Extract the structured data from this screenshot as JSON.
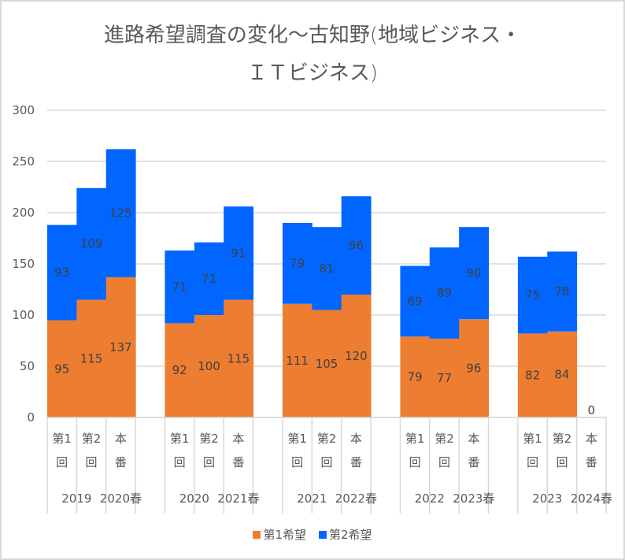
{
  "chart_data": {
    "type": "bar",
    "stacked": true,
    "title": "進路希望調査の変化～古知野(地域ビジネス・ＩＴビジネス)",
    "title_lines": [
      "進路希望調査の変化～古知野(地域ビジネス・",
      "ＩＴビジネス)"
    ],
    "xlabel": "",
    "ylabel": "",
    "ylim": [
      0,
      300
    ],
    "yticks": [
      0,
      50,
      100,
      150,
      200,
      250,
      300
    ],
    "grid": true,
    "legend_position": "bottom",
    "categories": [
      {
        "inner": "第1回",
        "inner_lines": [
          "第1",
          "回"
        ],
        "outer": "2019"
      },
      {
        "inner": "第2回",
        "inner_lines": [
          "第2",
          "回"
        ],
        "outer": "2019"
      },
      {
        "inner": "本番",
        "inner_lines": [
          "本",
          "番"
        ],
        "outer": "2020春"
      },
      {
        "inner": "",
        "inner_lines": [],
        "outer": ""
      },
      {
        "inner": "第1回",
        "inner_lines": [
          "第1",
          "回"
        ],
        "outer": "2020"
      },
      {
        "inner": "第2回",
        "inner_lines": [
          "第2",
          "回"
        ],
        "outer": "2020"
      },
      {
        "inner": "本番",
        "inner_lines": [
          "本",
          "番"
        ],
        "outer": "2021春"
      },
      {
        "inner": "",
        "inner_lines": [],
        "outer": ""
      },
      {
        "inner": "第1回",
        "inner_lines": [
          "第1",
          "回"
        ],
        "outer": "2021"
      },
      {
        "inner": "第2回",
        "inner_lines": [
          "第2",
          "回"
        ],
        "outer": "2021"
      },
      {
        "inner": "本番",
        "inner_lines": [
          "本",
          "番"
        ],
        "outer": "2022春"
      },
      {
        "inner": "",
        "inner_lines": [],
        "outer": ""
      },
      {
        "inner": "第1回",
        "inner_lines": [
          "第1",
          "回"
        ],
        "outer": "2022"
      },
      {
        "inner": "第2回",
        "inner_lines": [
          "第2",
          "回"
        ],
        "outer": "2022"
      },
      {
        "inner": "本番",
        "inner_lines": [
          "本",
          "番"
        ],
        "outer": "2023春"
      },
      {
        "inner": "",
        "inner_lines": [],
        "outer": ""
      },
      {
        "inner": "第1回",
        "inner_lines": [
          "第1",
          "回"
        ],
        "outer": "2023"
      },
      {
        "inner": "第2回",
        "inner_lines": [
          "第2",
          "回"
        ],
        "outer": "2023"
      },
      {
        "inner": "本番",
        "inner_lines": [
          "本",
          "番"
        ],
        "outer": "2024春"
      }
    ],
    "outer_groups": [
      {
        "label": "2019",
        "span": [
          0,
          1
        ]
      },
      {
        "label": "2020春",
        "span": [
          2,
          2
        ]
      },
      {
        "label": "",
        "span": [
          3,
          3
        ]
      },
      {
        "label": "2020",
        "span": [
          4,
          5
        ]
      },
      {
        "label": "2021春",
        "span": [
          6,
          6
        ]
      },
      {
        "label": "",
        "span": [
          7,
          7
        ]
      },
      {
        "label": "2021",
        "span": [
          8,
          9
        ]
      },
      {
        "label": "2022春",
        "span": [
          10,
          10
        ]
      },
      {
        "label": "",
        "span": [
          11,
          11
        ]
      },
      {
        "label": "2022",
        "span": [
          12,
          13
        ]
      },
      {
        "label": "2023春",
        "span": [
          14,
          14
        ]
      },
      {
        "label": "",
        "span": [
          15,
          15
        ]
      },
      {
        "label": "2023",
        "span": [
          16,
          17
        ]
      },
      {
        "label": "2024春",
        "span": [
          18,
          18
        ]
      }
    ],
    "series": [
      {
        "name": "第1希望",
        "color": "#ED7D31",
        "values": [
          95,
          115,
          137,
          null,
          92,
          100,
          115,
          null,
          111,
          105,
          120,
          null,
          79,
          77,
          96,
          null,
          82,
          84,
          0
        ]
      },
      {
        "name": "第2希望",
        "color": "#0066FF",
        "values": [
          93,
          109,
          125,
          null,
          71,
          71,
          91,
          null,
          79,
          81,
          96,
          null,
          69,
          89,
          90,
          null,
          75,
          78,
          null
        ]
      }
    ]
  }
}
